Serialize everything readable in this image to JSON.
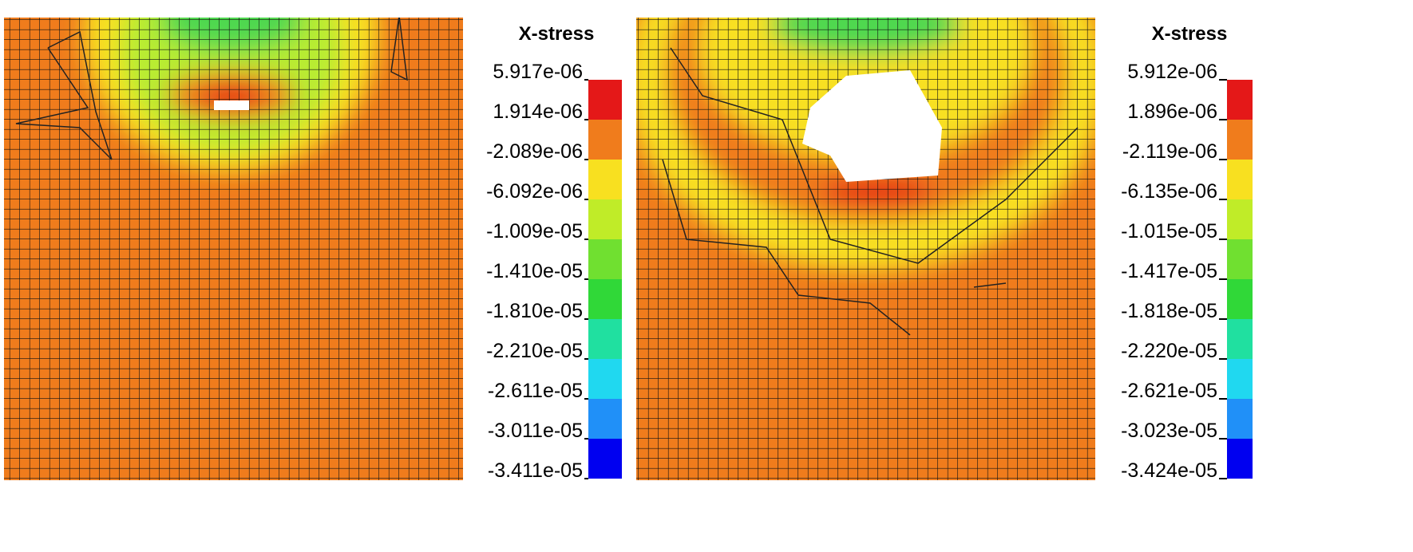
{
  "panels": [
    {
      "title": "X-stress",
      "legend_labels": [
        "5.917e-06",
        "1.914e-06",
        "-2.089e-06",
        "-6.092e-06",
        "-1.009e-05",
        "-1.410e-05",
        "-1.810e-05",
        "-2.210e-05",
        "-2.611e-05",
        "-3.011e-05",
        "-3.411e-05"
      ]
    },
    {
      "title": "X-stress",
      "legend_labels": [
        "5.912e-06",
        "1.896e-06",
        "-2.119e-06",
        "-6.135e-06",
        "-1.015e-05",
        "-1.417e-05",
        "-1.818e-05",
        "-2.220e-05",
        "-2.621e-05",
        "-3.023e-05",
        "-3.424e-05"
      ]
    }
  ]
}
